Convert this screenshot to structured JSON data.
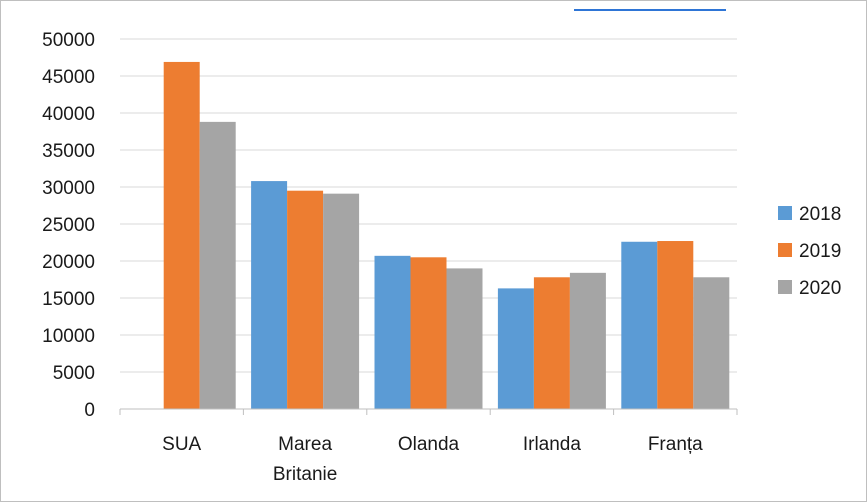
{
  "chart_data": {
    "type": "bar",
    "categories": [
      "SUA",
      "Marea Britanie",
      "Olanda",
      "Irlanda",
      "Franța"
    ],
    "category_label_lines": [
      [
        "SUA"
      ],
      [
        "Marea",
        "Britanie"
      ],
      [
        "Olanda"
      ],
      [
        "Irlanda"
      ],
      [
        "Franța"
      ]
    ],
    "series": [
      {
        "name": "2018",
        "color": "#5b9bd5",
        "values": [
          0,
          30800,
          20700,
          16300,
          22600
        ]
      },
      {
        "name": "2019",
        "color": "#ed7d31",
        "values": [
          46900,
          29500,
          20500,
          17800,
          22700
        ]
      },
      {
        "name": "2020",
        "color": "#a5a5a5",
        "values": [
          38800,
          29100,
          19000,
          18400,
          17800
        ]
      }
    ],
    "ylim": [
      0,
      50000
    ],
    "yticks": [
      "0",
      "5000",
      "10000",
      "15000",
      "20000",
      "25000",
      "30000",
      "35000",
      "40000",
      "45000",
      "50000"
    ],
    "grid": true,
    "legend_position": "right",
    "title": "",
    "xlabel": "",
    "ylabel": ""
  }
}
